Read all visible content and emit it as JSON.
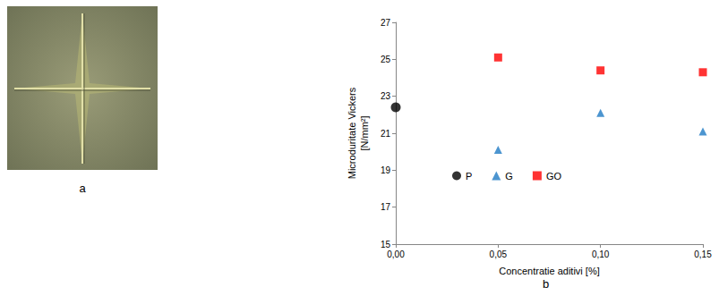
{
  "panel_labels": [
    "a",
    "b"
  ],
  "chart_data": {
    "type": "scatter",
    "x_label": "Concentratie aditivi [%]",
    "y_label": "Microduritate Vickers [N/mm²]",
    "xlim": [
      0,
      0.15
    ],
    "xticks": [
      {
        "value": 0,
        "label": "0,00"
      },
      {
        "value": 0.05,
        "label": "0,05"
      },
      {
        "value": 0.1,
        "label": "0,10"
      },
      {
        "value": 0.15,
        "label": "0,15"
      }
    ],
    "ylim": [
      15,
      27
    ],
    "yticks": [
      15,
      17,
      19,
      21,
      23,
      25,
      27
    ],
    "grid": false,
    "legend": "bottom",
    "series": [
      {
        "name": "P",
        "color": "#000000",
        "marker": "circle",
        "x": [
          0
        ],
        "values": [
          22.4
        ]
      },
      {
        "name": "G",
        "color": "#1f7ac4",
        "marker": "triangle",
        "x": [
          0.05,
          0.1,
          0.15
        ],
        "values": [
          20.1,
          22.1,
          21.1
        ]
      },
      {
        "name": "GO",
        "color": "#ff0000",
        "marker": "rect",
        "x": [
          0.05,
          0.1,
          0.15
        ],
        "values": [
          25.1,
          24.4,
          24.3
        ]
      }
    ]
  }
}
